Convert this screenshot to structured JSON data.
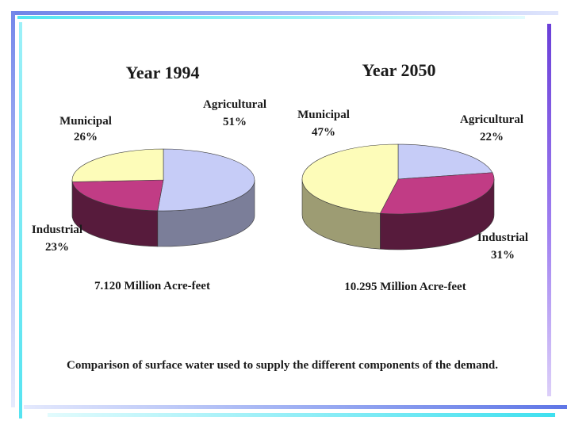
{
  "colors": {
    "agricultural": "#c6ccf7",
    "municipal": "#fdfcb9",
    "industrial": "#c13c85",
    "bar_blue": "#7488ea",
    "bar_cyan": "#56e4f1",
    "bar_purple": "#6a3fd8"
  },
  "chart_data": [
    {
      "type": "pie",
      "title": "Year 1994",
      "total_label": "7.120 Million Acre-feet",
      "slices": [
        {
          "key": "agricultural",
          "name": "Agricultural",
          "value": 51,
          "pct_label": "51%"
        },
        {
          "key": "industrial",
          "name": "Industrial",
          "value": 23,
          "pct_label": "23%"
        },
        {
          "key": "municipal",
          "name": "Municipal",
          "value": 26,
          "pct_label": "26%"
        }
      ]
    },
    {
      "type": "pie",
      "title": "Year 2050",
      "total_label": "10.295 Million Acre-feet",
      "slices": [
        {
          "key": "agricultural",
          "name": "Agricultural",
          "value": 22,
          "pct_label": "22%"
        },
        {
          "key": "industrial",
          "name": "Industrial",
          "value": 31,
          "pct_label": "31%"
        },
        {
          "key": "municipal",
          "name": "Municipal",
          "value": 47,
          "pct_label": "47%"
        }
      ]
    }
  ],
  "caption": "Comparison of surface water used to supply the different components of the demand."
}
